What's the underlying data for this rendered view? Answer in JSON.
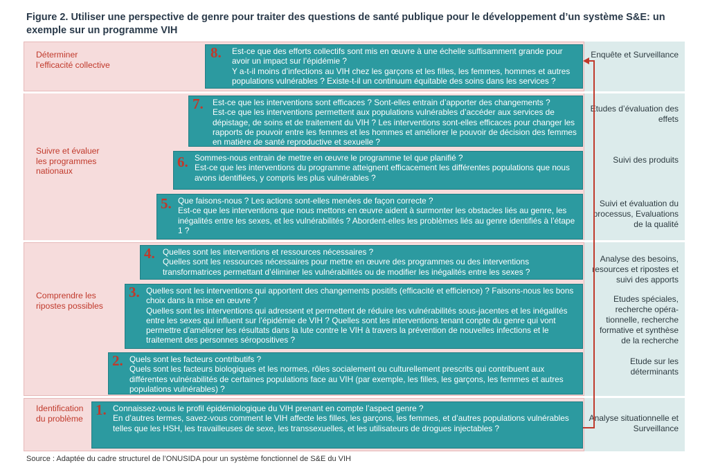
{
  "figure": {
    "title": "Figure 2. Utiliser une perspective de genre pour traiter des questions de santé publique pour le développement d’un système S&E: un exemple sur un programme VIH",
    "source": "Source : Adaptée du cadre structurel de l’ONUSIDA pour un système fonctionnel de S&E du VIH"
  },
  "stages": [
    {
      "label": "Déterminer l’efficacité collective"
    },
    {
      "label": "Suivre et évaluer les programmes nationaux"
    },
    {
      "label": "Comprendre les ripostes possibles"
    },
    {
      "label": "Identification du problème"
    }
  ],
  "methods": [
    "Enquête et Surveillance",
    "Etudes d’évaluation des effets",
    "Suivi des produits",
    "Suivi et évaluation du processus, Evaluations de la qualité",
    "Analyse des besoins, resources et ripostes et suivi des apports",
    "Etudes spéciales, recherche opéra-tionnelle, recherche formative et synthèse de la recherche",
    "Etude sur les déterminants",
    "Analyse situationnelle et Surveillance"
  ],
  "steps": [
    {
      "num": "8.",
      "heading": "Est-ce que des efforts collectifs sont mis en œuvre à une échelle suffisamment grande pour avoir un impact sur l’épidémie ?",
      "body": "Y a-t-il moins d’infections au VIH chez les garçons et les filles, les femmes, hommes et autres populations vulnérables ? Existe-t-il un continuum équitable des soins dans les services ?"
    },
    {
      "num": "7.",
      "heading": "Est-ce que les interventions sont efficaces ? Sont-elles entrain d’apporter des changements ?",
      "body": "Est-ce que les interventions permettent aux populations vulnérables d’accéder aux services de dépistage, de soins et de traitement du VIH ? Les interventions sont-elles efficaces pour changer les rapports de pouvoir entre les femmes et les hommes et améliorer le pouvoir de décision des femmes en matière de santé reproductive et sexuelle ?"
    },
    {
      "num": "6.",
      "heading": "Sommes-nous entrain de mettre en œuvre le programme tel que planifié ?",
      "body": "Est-ce que les interventions du programme atteignent efficacement les différentes populations que nous avons identifiées, y compris les plus vulnérables ?"
    },
    {
      "num": "5.",
      "heading": "Que faisons-nous ? Les actions sont-elles menées de façon correcte ?",
      "body": "Est-ce que les interventions que nous mettons en œuvre aident à surmonter les obstacles liés au genre, les inégalités entre les sexes, et les vulnérabilités ? Abordent-elles les problèmes liés au genre identifiés à l’étape 1 ?"
    },
    {
      "num": "4.",
      "heading": "Quelles sont les interventions et ressources nécessaires ?",
      "body": "Quelles sont les ressources nécessaires pour mettre en œuvre des programmes ou des interventions transformatrices permettant d’éliminer les vulnérabilités ou de modifier les inégalités entre les sexes ?"
    },
    {
      "num": "3.",
      "heading": "Quelles sont les interventions qui apportent des changements positifs (efficacité et efficience) ? Faisons-nous les bons choix dans la mise en œuvre ?",
      "body": "Quelles sont les interventions qui adressent et permettent de réduire les vulnérabilités sous-jacentes et les inégalités entre les sexes qui influent sur l’épidémie de VIH ? Quelles sont les interventions tenant conpte du genre qui vont permettre d’améliorer les résultats dans la lute contre le VIH à travers la prévention de nouvelles infections et le traitement des personnes séropositives ?"
    },
    {
      "num": "2.",
      "heading": "Quels sont les facteurs contributifs ?",
      "body": "Quels sont les facteurs biologiques et les normes, rôles socialement ou culturellement prescrits qui contribuent aux différentes vulnérabilités de certaines populations face au VIH (par exemple, les filles, les garçons, les femmes et autres populations vulnérables) ?"
    },
    {
      "num": "1.",
      "heading": "Connaissez-vous le profil épidémiologique du VIH prenant en compte l’aspect genre ?",
      "body": "En d’autres termes, savez-vous comment le VIH affecte les filles, les garçons, les femmes, et d’autres populations vulnérables telles que les HSH, les travailleuses de sexe, les transsexuelles, et les utilisateurs de drogues injectables ?"
    }
  ]
}
